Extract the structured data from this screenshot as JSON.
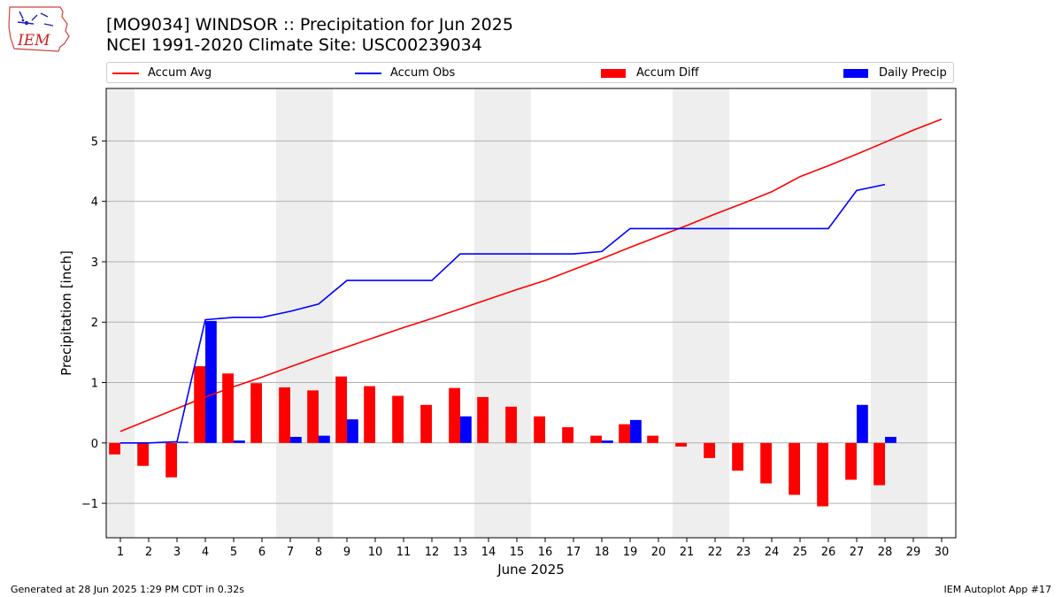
{
  "logo": {
    "text": "IEM"
  },
  "title_line1": "[MO9034] WINDSOR :: Precipitation for Jun 2025",
  "title_line2": "NCEI 1991-2020 Climate Site: USC00239034",
  "footer_left": "Generated at 28 Jun 2025 1:29 PM CDT in 0.32s",
  "footer_right": "IEM Autoplot App #17",
  "colors": {
    "accum_avg": "#ff0000",
    "accum_obs": "#0000ff",
    "accum_diff": "#ff0000",
    "daily_precip": "#0000ff",
    "weekend_shade": "#eeeeee",
    "grid": "#b0b0b0"
  },
  "chart_data": {
    "type": "bar",
    "xlabel": "June 2025",
    "ylabel": "Precipitation [inch]",
    "xlim": [
      0.5,
      30.5
    ],
    "ylim": [
      -1.57,
      5.87
    ],
    "x_ticks": [
      1,
      2,
      3,
      4,
      5,
      6,
      7,
      8,
      9,
      10,
      11,
      12,
      13,
      14,
      15,
      16,
      17,
      18,
      19,
      20,
      21,
      22,
      23,
      24,
      25,
      26,
      27,
      28,
      29,
      30
    ],
    "y_ticks": [
      -1,
      0,
      1,
      2,
      3,
      4,
      5
    ],
    "y_tick_labels": [
      "−1",
      "0",
      "1",
      "2",
      "3",
      "4",
      "5"
    ],
    "grid": "horizontal",
    "legend_position": "top",
    "weekend_shading": [
      [
        0.5,
        1.5
      ],
      [
        6.5,
        8.5
      ],
      [
        13.5,
        15.5
      ],
      [
        20.5,
        22.5
      ],
      [
        27.5,
        29.5
      ]
    ],
    "series": [
      {
        "name": "Accum Avg",
        "kind": "line",
        "x": [
          1,
          2,
          3,
          4,
          5,
          6,
          7,
          8,
          9,
          10,
          11,
          12,
          13,
          14,
          15,
          16,
          17,
          18,
          19,
          20,
          21,
          22,
          23,
          24,
          25,
          26,
          27,
          28,
          29,
          30
        ],
        "values": [
          0.19,
          0.38,
          0.57,
          0.76,
          0.93,
          1.09,
          1.26,
          1.43,
          1.59,
          1.75,
          1.91,
          2.06,
          2.22,
          2.38,
          2.54,
          2.69,
          2.87,
          3.05,
          3.24,
          3.42,
          3.6,
          3.79,
          3.97,
          4.16,
          4.41,
          4.59,
          4.78,
          4.98,
          5.18,
          5.36
        ]
      },
      {
        "name": "Accum Obs",
        "kind": "line",
        "x": [
          1,
          2,
          3,
          4,
          5,
          6,
          7,
          8,
          9,
          10,
          11,
          12,
          13,
          14,
          15,
          16,
          17,
          18,
          19,
          20,
          21,
          22,
          23,
          24,
          25,
          26,
          27,
          28
        ],
        "values": [
          0.0,
          0.0,
          0.02,
          2.04,
          2.08,
          2.08,
          2.18,
          2.3,
          2.69,
          2.69,
          2.69,
          2.69,
          3.13,
          3.13,
          3.13,
          3.13,
          3.13,
          3.17,
          3.55,
          3.55,
          3.55,
          3.55,
          3.55,
          3.55,
          3.55,
          3.55,
          4.18,
          4.28
        ]
      },
      {
        "name": "Accum Diff",
        "kind": "bar",
        "offset": -0.2,
        "x": [
          1,
          2,
          3,
          4,
          5,
          6,
          7,
          8,
          9,
          10,
          11,
          12,
          13,
          14,
          15,
          16,
          17,
          18,
          19,
          20,
          21,
          22,
          23,
          24,
          25,
          26,
          27,
          28
        ],
        "values": [
          -0.19,
          -0.38,
          -0.57,
          1.27,
          1.15,
          0.99,
          0.92,
          0.87,
          1.1,
          0.94,
          0.78,
          0.63,
          0.91,
          0.76,
          0.6,
          0.44,
          0.26,
          0.12,
          0.31,
          0.12,
          -0.06,
          -0.25,
          -0.46,
          -0.67,
          -0.86,
          -1.05,
          -0.61,
          -0.7
        ]
      },
      {
        "name": "Daily Precip",
        "kind": "bar",
        "offset": 0.2,
        "x": [
          1,
          2,
          3,
          4,
          5,
          6,
          7,
          8,
          9,
          10,
          11,
          12,
          13,
          14,
          15,
          16,
          17,
          18,
          19,
          20,
          21,
          22,
          23,
          24,
          25,
          26,
          27,
          28
        ],
        "values": [
          0.0,
          0.0,
          0.02,
          2.02,
          0.04,
          0.0,
          0.1,
          0.12,
          0.39,
          0.0,
          0.0,
          0.0,
          0.44,
          0.0,
          0.0,
          0.0,
          0.0,
          0.04,
          0.38,
          0.0,
          0.0,
          0.0,
          0.0,
          0.0,
          0.0,
          0.0,
          0.63,
          0.1
        ]
      }
    ]
  }
}
